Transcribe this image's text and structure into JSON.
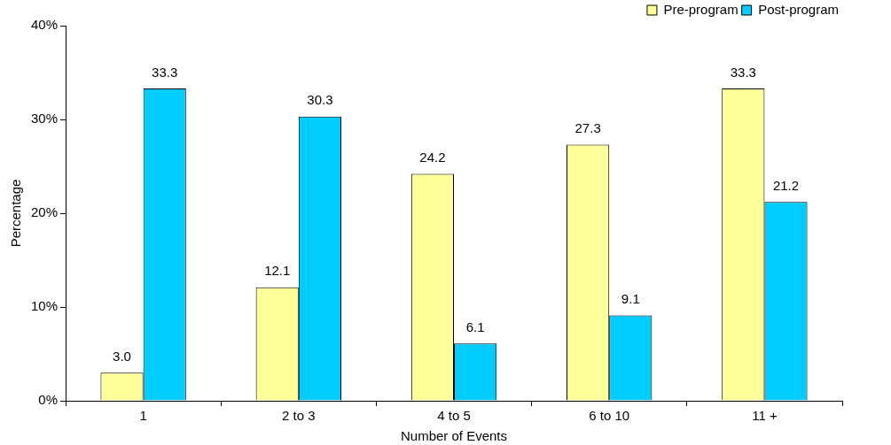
{
  "chart_data": {
    "type": "bar",
    "xlabel": "Number of Events",
    "ylabel": "Percentage",
    "categories": [
      "1",
      "2 to 3",
      "4 to 5",
      "6 to 10",
      "11 +"
    ],
    "series": [
      {
        "name": "Pre-program",
        "color": "#ffff99",
        "values": [
          3.0,
          12.1,
          24.2,
          27.3,
          33.3
        ],
        "value_labels": [
          "3.0",
          "12.1",
          "24.2",
          "27.3",
          "33.3"
        ]
      },
      {
        "name": "Post-program",
        "color": "#00ccff",
        "values": [
          33.3,
          30.3,
          6.1,
          9.1,
          21.2
        ],
        "value_labels": [
          "33.3",
          "30.3",
          "6.1",
          "9.1",
          "21.2"
        ]
      }
    ],
    "ylim": [
      0,
      40
    ],
    "yticks": [
      {
        "value": 0,
        "label": "0%"
      },
      {
        "value": 10,
        "label": "10%"
      },
      {
        "value": 20,
        "label": "20%"
      },
      {
        "value": 30,
        "label": "30%"
      },
      {
        "value": 40,
        "label": "40%"
      }
    ],
    "legend": "top right"
  }
}
